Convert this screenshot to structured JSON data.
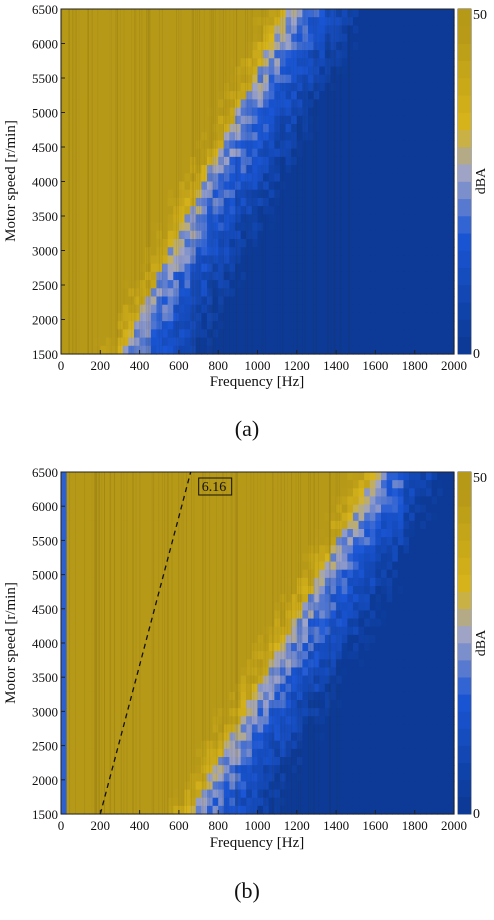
{
  "colors": {
    "high": "#d8b51b",
    "mid": "#9ea3c8",
    "low": "#1a56d6",
    "floor": "#0c3a96"
  },
  "chart_data": [
    {
      "type": "heatmap",
      "panel_label": "(a)",
      "xlabel": "Frequency [Hz]",
      "ylabel": "Motor speed [r/min]",
      "xlim": [
        0,
        2000
      ],
      "ylim": [
        1500,
        6500
      ],
      "x_ticks": [
        "0",
        "200",
        "400",
        "600",
        "800",
        "1000",
        "1200",
        "1400",
        "1600",
        "1800",
        "2000"
      ],
      "y_ticks": [
        "1500",
        "2000",
        "2500",
        "3000",
        "3500",
        "4000",
        "4500",
        "5000",
        "5500",
        "6000",
        "6500"
      ],
      "colorbar": {
        "label": "dBA",
        "min": 0,
        "max": 50,
        "min_label": "0",
        "max_label": "50"
      },
      "boundary": {
        "speeds": [
          1500,
          6500
        ],
        "frequency": [
          300,
          1150
        ]
      },
      "annotations": []
    },
    {
      "type": "heatmap",
      "panel_label": "(b)",
      "xlabel": "Frequency [Hz]",
      "ylabel": "Motor speed [r/min]",
      "xlim": [
        0,
        2000
      ],
      "ylim": [
        1500,
        6500
      ],
      "x_ticks": [
        "0",
        "200",
        "400",
        "600",
        "800",
        "1000",
        "1200",
        "1400",
        "1600",
        "1800",
        "2000"
      ],
      "y_ticks": [
        "1500",
        "2000",
        "2500",
        "3000",
        "3500",
        "4000",
        "4500",
        "5000",
        "5500",
        "6000",
        "6500"
      ],
      "colorbar": {
        "label": "dBA",
        "min": 0,
        "max": 50,
        "min_label": "0",
        "max_label": "50"
      },
      "boundary": {
        "speeds": [
          1500,
          6500
        ],
        "frequency": [
          650,
          1600
        ]
      },
      "order_line": {
        "label": "6.16",
        "x": [
          200,
          660
        ],
        "y": [
          1500,
          6500
        ]
      },
      "annotations": [
        "6.16"
      ]
    }
  ]
}
